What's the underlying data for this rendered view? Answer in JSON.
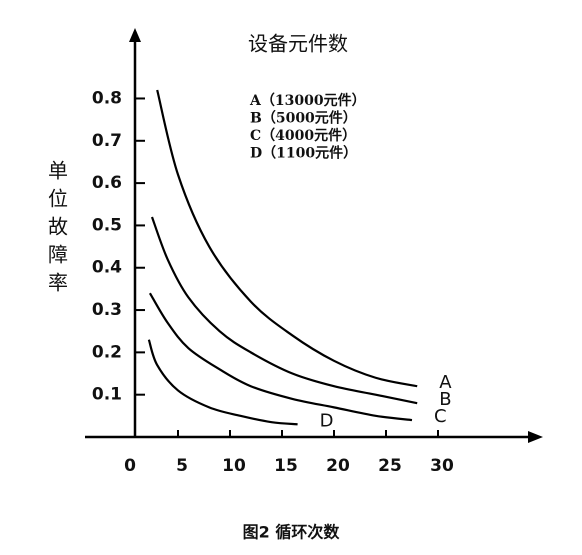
{
  "chart_data": {
    "type": "line",
    "title": "设备元件数",
    "caption": "图2 循环次数",
    "y_label": "单位故障率",
    "color": "#000000",
    "xlim": [
      0,
      40
    ],
    "xticks": [
      0,
      5,
      10,
      15,
      20,
      25,
      30
    ],
    "ylim": [
      0,
      0.95
    ],
    "yticks": [
      0.1,
      0.2,
      0.3,
      0.4,
      0.5,
      0.6,
      0.7,
      0.8
    ],
    "series": [
      {
        "name": "A（13000元件）",
        "label": "A",
        "x": [
          3,
          5,
          8,
          12,
          16,
          20,
          24,
          28
        ],
        "values": [
          0.82,
          0.62,
          0.45,
          0.32,
          0.24,
          0.18,
          0.14,
          0.12
        ]
      },
      {
        "name": "B（5000元件）",
        "label": "B",
        "x": [
          2.5,
          4,
          6,
          9,
          12,
          16,
          20,
          24,
          28
        ],
        "values": [
          0.52,
          0.42,
          0.33,
          0.25,
          0.2,
          0.15,
          0.12,
          0.1,
          0.08
        ]
      },
      {
        "name": "C（4000元件）",
        "label": "C",
        "x": [
          2.3,
          4,
          6,
          9,
          12,
          16,
          20,
          24,
          27.5
        ],
        "values": [
          0.34,
          0.27,
          0.21,
          0.16,
          0.12,
          0.09,
          0.07,
          0.05,
          0.04
        ]
      },
      {
        "name": "D（1100元件）",
        "label": "D",
        "x": [
          2.2,
          3,
          5,
          8,
          11,
          14,
          16.5
        ],
        "values": [
          0.23,
          0.17,
          0.11,
          0.07,
          0.05,
          0.035,
          0.03
        ]
      }
    ]
  }
}
